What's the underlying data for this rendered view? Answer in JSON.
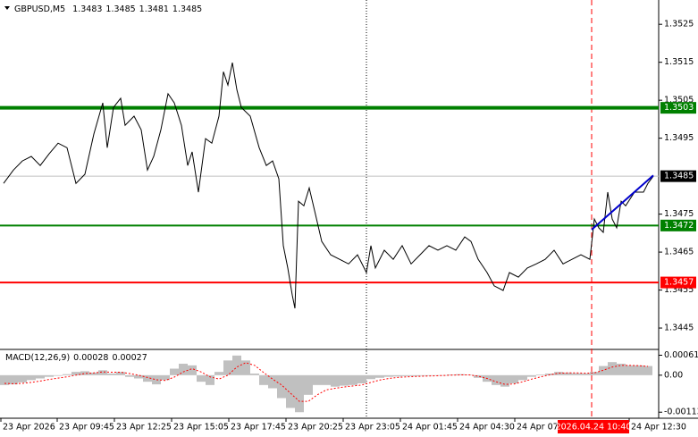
{
  "chart_data": [
    {
      "type": "line",
      "title": "GBPUSD,M5",
      "ohlc": [
        1.3483,
        1.3485,
        1.3481,
        1.3485
      ],
      "x": [
        2,
        7.5,
        12.5,
        17.5,
        22.5,
        27.5,
        32.5,
        37.5,
        42.5,
        47.5,
        52.5,
        57.5,
        60,
        63.5,
        67.5,
        70,
        75,
        79,
        82.5,
        86,
        90,
        94,
        97.5,
        101.5,
        105,
        107.5,
        111,
        115,
        118.5,
        122.5,
        125,
        127.5,
        130,
        132.5,
        135,
        140,
        145,
        149,
        152.5,
        156,
        158.5,
        161,
        163.5,
        165,
        167,
        170,
        173,
        176.5,
        180,
        185,
        190,
        195,
        200,
        205,
        207.5,
        210,
        215,
        220,
        225,
        230,
        235,
        240,
        245,
        250,
        255,
        260,
        263.5,
        267.5,
        272.5,
        276.5,
        281.5,
        285,
        290,
        295,
        300,
        305,
        310,
        315,
        320,
        325,
        330,
        332.5,
        335,
        337.5,
        340,
        342.5,
        345,
        347.5,
        350,
        355,
        360,
        362.5,
        365.5
      ],
      "values": [
        1.34831,
        1.34866,
        1.3489,
        1.34902,
        1.34878,
        1.34909,
        1.34937,
        1.34925,
        1.34831,
        1.34855,
        1.34961,
        1.35043,
        1.34925,
        1.35031,
        1.35055,
        1.34984,
        1.35008,
        1.34972,
        1.34866,
        1.34902,
        1.34972,
        1.35067,
        1.35043,
        1.34984,
        1.34878,
        1.34914,
        1.34808,
        1.34949,
        1.34937,
        1.35008,
        1.35125,
        1.3509,
        1.35149,
        1.35078,
        1.35031,
        1.35008,
        1.34925,
        1.34878,
        1.3489,
        1.34843,
        1.34667,
        1.34608,
        1.34537,
        1.34502,
        1.34784,
        1.34772,
        1.34819,
        1.34749,
        1.34678,
        1.34643,
        1.34631,
        1.34619,
        1.34643,
        1.34596,
        1.34667,
        1.34608,
        1.34655,
        1.34631,
        1.34667,
        1.34619,
        1.34643,
        1.34667,
        1.34655,
        1.34667,
        1.34655,
        1.3469,
        1.34678,
        1.34631,
        1.34596,
        1.34561,
        1.34549,
        1.34596,
        1.34584,
        1.34608,
        1.34619,
        1.34631,
        1.34655,
        1.34619,
        1.34631,
        1.34643,
        1.34631,
        1.34737,
        1.34714,
        1.34702,
        1.34808,
        1.34737,
        1.34714,
        1.34784,
        1.34772,
        1.34808,
        1.34808,
        1.34831,
        1.3485
      ],
      "color": "#000000",
      "xlim": [
        0,
        368.5
      ],
      "ylim": [
        1.34396,
        1.35314
      ],
      "yticks": [
        1.3525,
        1.3515,
        1.3505,
        1.3495,
        1.3475,
        1.3465,
        1.3455,
        1.3445
      ],
      "current_price": 1.3485,
      "levels": [
        {
          "value": 1.3503,
          "color": "#008000",
          "style": "thick"
        },
        {
          "value": 1.3472,
          "color": "#008000",
          "style": "thin"
        },
        {
          "value": 1.3457,
          "color": "#ff0000",
          "style": "thin"
        }
      ],
      "trendline": {
        "x": [
          331,
          365.5
        ],
        "values": [
          1.34709,
          1.34852
        ],
        "color": "#0000cc"
      },
      "vlines": [
        {
          "x": 205,
          "color": "#000000",
          "style": "dotted"
        },
        {
          "x": 331,
          "color": "#ff0000",
          "style": "dashed",
          "label": "2026.04.24 10:40"
        }
      ]
    },
    {
      "type": "macd",
      "title": "MACD(12,26,9)",
      "legend_values": [
        0.00028,
        0.00027
      ],
      "x": [
        2.5,
        7.5,
        12.5,
        17.5,
        22.5,
        27.5,
        32.5,
        37.5,
        42.5,
        47.5,
        52.5,
        57.5,
        62.5,
        67.5,
        72.5,
        77.5,
        82.5,
        87.5,
        92.5,
        97.5,
        102.5,
        107.5,
        112.5,
        117.5,
        122.5,
        127.5,
        132.5,
        137.5,
        142.5,
        147.5,
        152.5,
        157.5,
        162.5,
        167.5,
        172.5,
        177.5,
        182.5,
        187.5,
        192.5,
        197.5,
        202.5,
        207.5,
        212.5,
        217.5,
        222.5,
        227.5,
        232.5,
        237.5,
        242.5,
        247.5,
        252.5,
        257.5,
        262.5,
        267.5,
        272.5,
        277.5,
        282.5,
        287.5,
        292.5,
        297.5,
        302.5,
        307.5,
        312.5,
        317.5,
        322.5,
        327.5,
        332.5,
        337.5,
        342.5,
        347.5,
        352.5,
        357.5,
        362.5
      ],
      "series": [
        {
          "color": "#c0c0c0",
          "values": [
            -0.0003,
            -0.00028,
            -0.00022,
            -0.00015,
            -0.0001,
            -5e-05,
            -2e-05,
            3e-05,
            0.0001,
            0.00012,
            8e-05,
            0.00015,
            5e-05,
            0.0001,
            -5e-05,
            -0.0001,
            -0.0002,
            -0.00028,
            -0.00015,
            0.0002,
            0.00035,
            0.0003,
            -0.0002,
            -0.0003,
            0.0001,
            0.00045,
            0.0006,
            0.00045,
            5e-05,
            -0.0003,
            -0.0004,
            -0.0007,
            -0.001,
            -0.00113,
            -0.0006,
            -0.0003,
            -0.0003,
            -0.00035,
            -0.00032,
            -0.0003,
            -0.00025,
            -0.00012,
            -8e-05,
            -5e-05,
            -4e-05,
            -3e-05,
            -3e-05,
            -2e-05,
            -1e-05,
            0,
            2e-05,
            3e-05,
            1e-05,
            -8e-05,
            -0.0002,
            -0.0003,
            -0.00035,
            -0.00025,
            -0.00015,
            -5e-05,
            2e-05,
            5e-05,
            0.0001,
            8e-05,
            6e-05,
            5e-05,
            0.0001,
            0.00028,
            0.0004,
            0.00035,
            0.0003,
            0.0003,
            0.00028
          ]
        },
        {
          "color": "#ff0000",
          "values": [
            -0.00025,
            -0.00026,
            -0.00025,
            -0.00022,
            -0.00018,
            -0.00013,
            -9e-05,
            -5e-05,
            0,
            5e-05,
            7e-05,
            0.0001,
            9e-05,
            9e-05,
            5e-05,
            0,
            -7e-05,
            -0.00014,
            -0.00016,
            -6e-05,
            0.0001,
            0.0002,
            0.0001,
            -5e-05,
            -0.00012,
            0,
            0.00025,
            0.00038,
            0.0003,
            8e-05,
            -0.00012,
            -0.0003,
            -0.00055,
            -0.0008,
            -0.0008,
            -0.0006,
            -0.00045,
            -0.0004,
            -0.00036,
            -0.00033,
            -0.0003,
            -0.00022,
            -0.00015,
            -0.0001,
            -7e-05,
            -5e-05,
            -4e-05,
            -3e-05,
            -2e-05,
            -1e-05,
            0,
            1e-05,
            1e-05,
            -3e-05,
            -0.0001,
            -0.0002,
            -0.00028,
            -0.00027,
            -0.0002,
            -0.00012,
            -5e-05,
            1e-05,
            6e-05,
            7e-05,
            7e-05,
            6e-05,
            7e-05,
            0.00015,
            0.00025,
            0.0003,
            0.0003,
            0.00029,
            0.00027
          ]
        }
      ],
      "xlim": [
        0,
        368.5
      ],
      "ylim": [
        -0.00126,
        0.00076
      ],
      "yticks": [
        0.00061,
        {
          "value": 0,
          "label": "0.00"
        },
        -0.00113
      ],
      "xticks": [
        {
          "value": 0.5,
          "label": "23 Apr 2026"
        },
        {
          "value": 32,
          "label": "23 Apr 09:45"
        },
        {
          "value": 64,
          "label": "23 Apr 12:25"
        },
        {
          "value": 96,
          "label": "23 Apr 15:05"
        },
        {
          "value": 128,
          "label": "23 Apr 17:45"
        },
        {
          "value": 160,
          "label": "23 Apr 20:25"
        },
        {
          "value": 192,
          "label": "23 Apr 23:05"
        },
        {
          "value": 224,
          "label": "24 Apr 01:45"
        },
        {
          "value": 256,
          "label": "24 Apr 04:30"
        },
        {
          "value": 288,
          "label": "24 Apr 07:"
        },
        {
          "value": 352,
          "label": "24 Apr 12:30"
        }
      ]
    }
  ]
}
